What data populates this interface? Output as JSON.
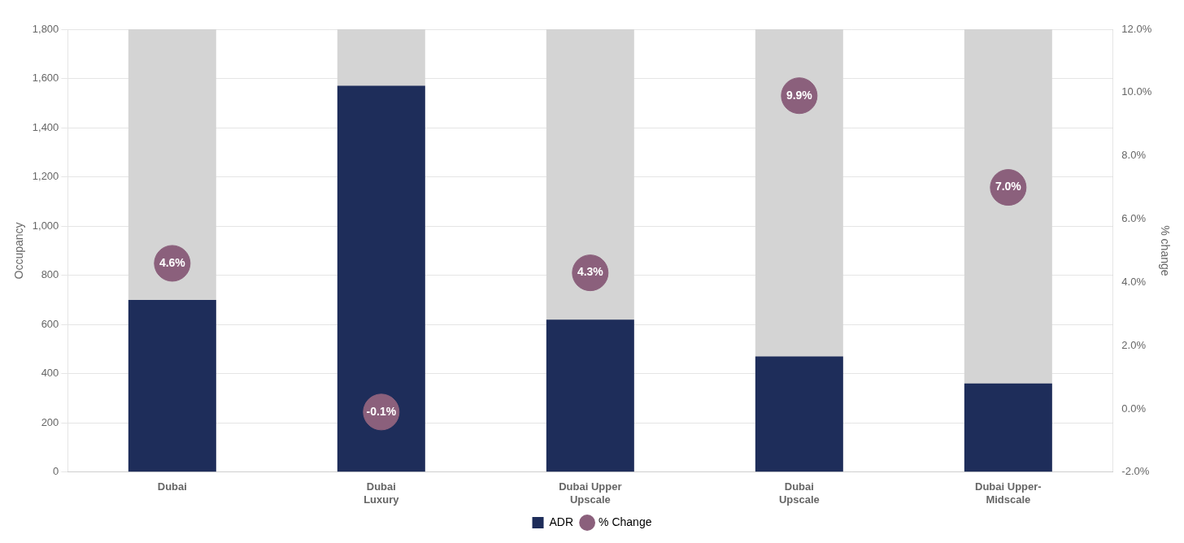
{
  "chart_data": {
    "type": "bar",
    "categories": [
      "Dubai",
      "Dubai\nLuxury",
      "Dubai Upper\nUpscale",
      "Dubai\nUpscale",
      "Dubai Upper-\nMidscale"
    ],
    "series": [
      {
        "color": "#d4d4d4",
        "values": [
          1800,
          1800,
          1800,
          1800,
          1800
        ]
      },
      {
        "name": "ADR",
        "color": "#1e2d5a",
        "values": [
          700,
          1570,
          620,
          470,
          360
        ]
      },
      {
        "name": "% Change",
        "type": "scatter",
        "axis": "y2",
        "color": "#8b607c",
        "marker": "circle",
        "values": [
          0.046,
          -0.001,
          0.043,
          0.099,
          0.07
        ],
        "value_labels": [
          "4.6%",
          "-0.1%",
          "4.3%",
          "9.9%",
          "7.0%"
        ],
        "data_labels": true
      }
    ],
    "ylabel": "Occupancy",
    "y2label": "% change",
    "ylim": [
      0,
      1800
    ],
    "yticks": [
      0,
      200,
      400,
      600,
      800,
      {
        "value": 1000,
        "label": "1,000"
      },
      {
        "value": 1200,
        "label": "1,200"
      },
      {
        "value": 1400,
        "label": "1,400"
      },
      {
        "value": 1600,
        "label": "1,600"
      },
      {
        "value": 1800,
        "label": "1,800"
      }
    ],
    "y2lim": [
      -0.02,
      0.12
    ],
    "y2ticks": [
      {
        "value": -0.02,
        "label": "-2.0%"
      },
      {
        "value": 0.0,
        "label": "0.0%"
      },
      {
        "value": 0.02,
        "label": "2.0%"
      },
      {
        "value": 0.04,
        "label": "4.0%"
      },
      {
        "value": 0.06,
        "label": "6.0%"
      },
      {
        "value": 0.08,
        "label": "8.0%"
      },
      {
        "value": 0.1,
        "label": "10.0%"
      },
      {
        "value": 0.12,
        "label": "12.0%"
      }
    ],
    "grid": true,
    "legend": "bottom"
  }
}
